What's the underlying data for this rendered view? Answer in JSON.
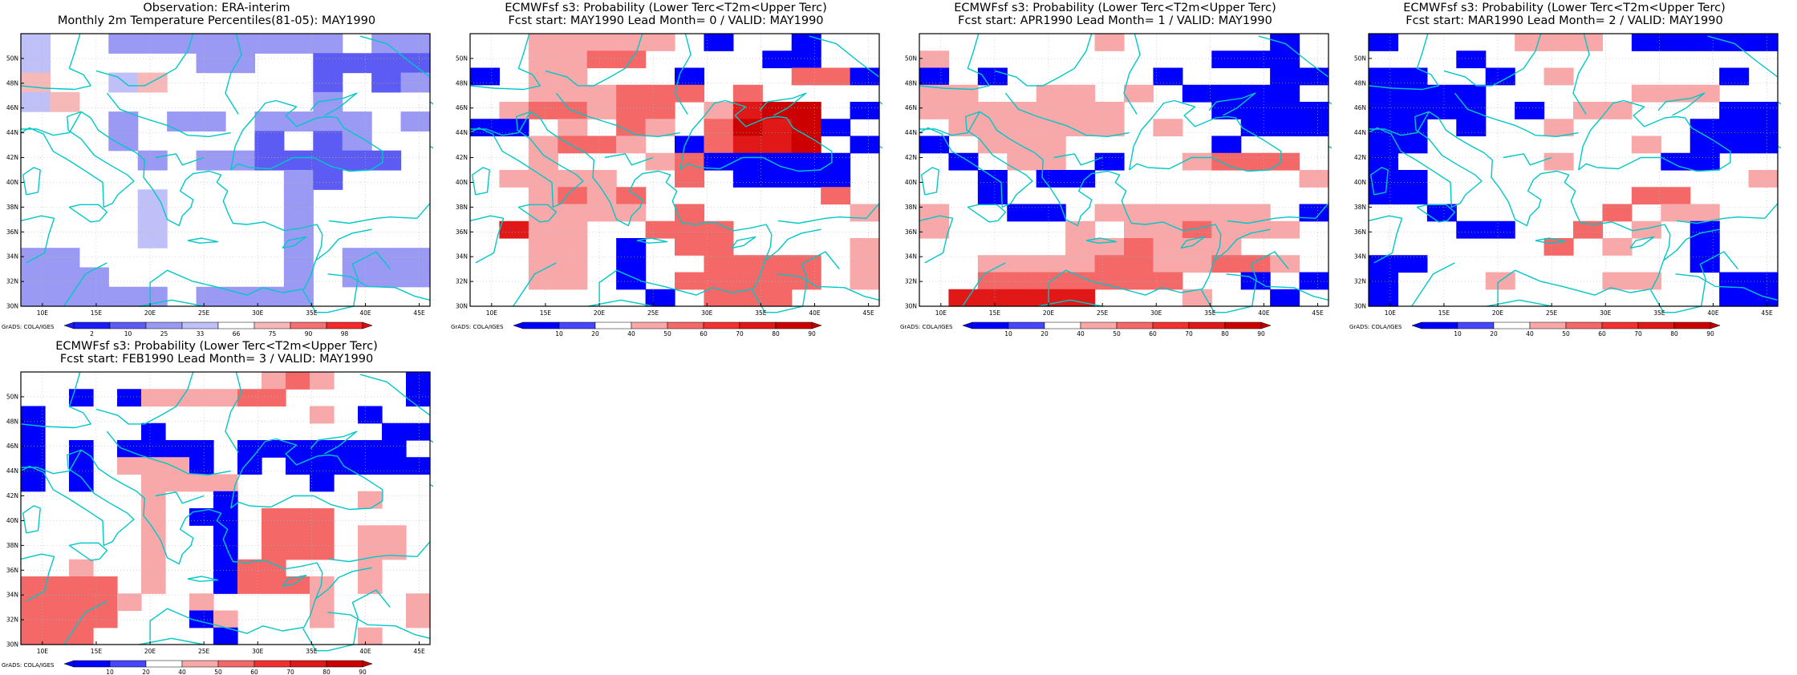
{
  "domain": "weather-map-grid",
  "colors": {
    "obs": {
      "2": "#1b1bf5",
      "10": "#5c5cf5",
      "25": "#9a9af5",
      "33": "#c0c0f8",
      "66": "#ffffff",
      "75": "#f7b8b8",
      "90": "#f57070",
      "98": "#f52a2a"
    },
    "prob": {
      "10": "#0000ff",
      "20": "#4646ff",
      "40": "#ffffff",
      "50": "#f8a8a8",
      "60": "#f56868",
      "70": "#f23030",
      "80": "#e01818",
      "90": "#cc0000"
    },
    "coast": "#00c8c8"
  },
  "grads_label": "GrADS: COLA/IGES",
  "map_axes": {
    "lon_ticks": [
      "10E",
      "15E",
      "20E",
      "25E",
      "30E",
      "35E",
      "40E",
      "45E"
    ],
    "lat_ticks": [
      "30N",
      "32N",
      "34N",
      "36N",
      "38N",
      "40N",
      "42N",
      "44N",
      "46N",
      "48N",
      "50N"
    ]
  },
  "obs_colorbar": {
    "labels": [
      "2",
      "10",
      "25",
      "33",
      "66",
      "75",
      "90",
      "98"
    ]
  },
  "prob_colorbar": {
    "labels": [
      "10",
      "20",
      "40",
      "50",
      "60",
      "70",
      "80",
      "90"
    ]
  },
  "panels": [
    {
      "title1": "Observation: ERA-interim",
      "title2": "Monthly 2m Temperature Percentiles(81-05): MAY1990",
      "scale": "obs",
      "grid": [
        "y..33333333.33",
        "y.....33..2222",
        "9..y9.....2.23",
        "y9........3...",
        "...3.33.3333.3",
        "...3....2.23..",
        "....3.3322222.",
        ".........32...",
        "....y....3....",
        "....y....3....",
        "....y....3....",
        "33.......3.333",
        "333......3.333",
        "33333.3333...."
      ]
    },
    {
      "title1": "ECMWFsf s3: Probability (Lower Terc<T2m<Upper Terc)",
      "title2": "Fcst start: MAY1990   Lead Month= 0 / VALID: MAY1990",
      "scale": "prob",
      "grid": [
        "..55555.1..1..",
        "..5566....11..",
        "1.55...1...661",
        "..555666.6....",
        ".566566.5899.1",
        "11.5.65.69891.",
        "..5665.16889.1",
        "..5...5611111.",
        ".5555..6.1111.",
        "..5656......6.",
        "..5555.6.....5",
        ".855..666.....",
        "..55.1.66....5",
        "..55.1..6666.5",
        "..55.1.66666.5",
        "......1.666..."
      ]
    },
    {
      "title1": "ECMWFsf s3: Probability (Lower Terc<T2m<Upper Terc)",
      "title2": "Fcst start: APR1990   Lead Month= 1 / VALID: MAY1990",
      "scale": "prob",
      "grid": [
        "......5.....1.",
        "5.........111.",
        "1.1.....1...11",
        "55..55.5.1111.",
        "5555555...1111",
        ".555555.5..111",
        "1.555.....1...",
        ".1.55.1..5666.",
        "..1.11.......5",
        "..1...........",
        "5..11.555555.1",
        "5....5.556555.",
        ".....556555...",
        "..55556655665.",
        "..6666666..1.1",
        ".88888...5..1."
      ]
    },
    {
      "title1": "ECMWFsf s3: Probability (Lower Terc<T2m<Upper Terc)",
      "title2": "Fcst start: MAR1990   Lead Month= 2 / VALID: MAY1990",
      "scale": "prob",
      "grid": [
        "1....555.11111",
        "...1..........",
        "11..1.5.....1.",
        "1111.....555..",
        "1111.1.55...11",
        "11.1..5....111",
        "11.......5.111",
        "1.....5...11..",
        "11...........5",
        "11.......66...",
        "..1.....6.55..",
        "...11..6.5.1..",
        "......6.5..1..",
        "11.........1..",
        "1...5...55..11",
        "1...........11"
      ]
    },
    {
      "title1": "ECMWFsf s3: Probability (Lower Terc<T2m<Upper Terc)",
      "title2": "Fcst start: FEB1990   Lead Month= 3 / VALID: MAY1990",
      "scale": "prob",
      "grid": [
        "..........565...1",
        "..1.1555566.....1",
        "1...........5.1..",
        "1....1.........11",
        "1.1.1111.1111111.",
        "1.1.5551.1.111111",
        "1.1..5555...1....",
        ".....5..1.....5..",
        ".....5.11.666....",
        ".....5..1.666.55.",
        ".....5..1.666.55.",
        "..5..5..166...5..",
        "6666.5..16665.5..",
        "66665..5....5...5",
        "6666...15...5...5",
        "666.....1.....5.."
      ]
    }
  ]
}
